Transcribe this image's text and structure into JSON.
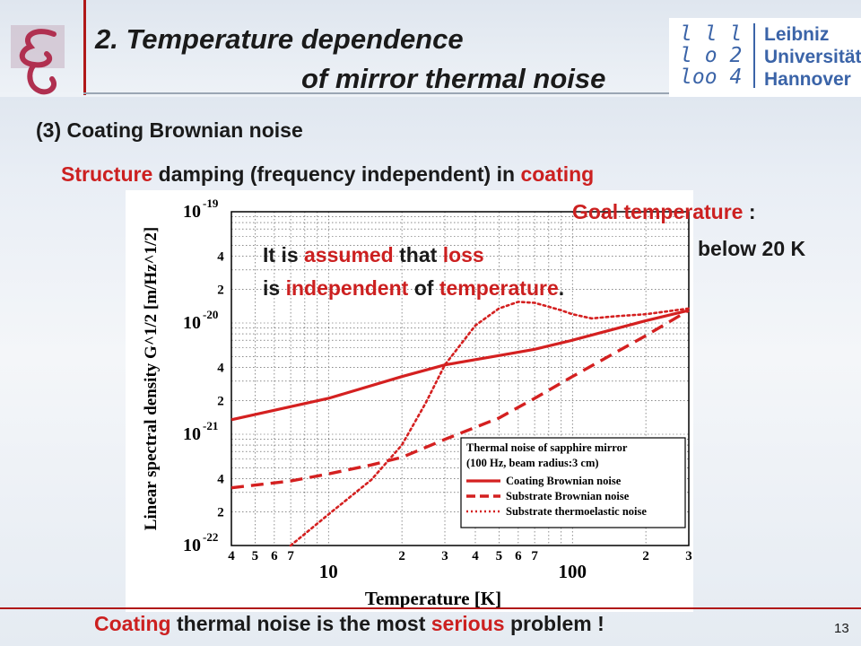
{
  "title": {
    "line1": "2. Temperature dependence",
    "line2": "of mirror thermal noise"
  },
  "logo": {
    "left_icon": "stylized-g-logo-icon",
    "luh_digits": [
      "l",
      "l",
      "l",
      "l",
      "o",
      "2",
      "l",
      "o",
      "o",
      "4"
    ],
    "luh_text": [
      "Leibniz",
      "Universität",
      "Hannover"
    ]
  },
  "subtitle": "(3) Coating Brownian noise",
  "structure_line": {
    "red1": "Structure",
    "black1": " damping (frequency independent) in ",
    "red2": "coating"
  },
  "goal": {
    "red": "Goal temperature",
    "black": " :",
    "below": "below 20 K"
  },
  "assumption": {
    "l1a": "It is ",
    "l1b": "assumed",
    "l1c": " that ",
    "l1d": "loss",
    "l2a": "is ",
    "l2b": "independent",
    "l2c": " of ",
    "l2d": "temperature",
    "l2e": "."
  },
  "bottom": {
    "red1": "Coating",
    "black1": " thermal noise is the most ",
    "red2": "serious",
    "black2": " problem !"
  },
  "page_number": "13",
  "colors": {
    "accent_red": "#cc2020",
    "series": "#d42020",
    "logo_blue": "#3b64a8"
  },
  "chart_data": {
    "type": "line",
    "xlabel": "Temperature [K]",
    "ylabel": "Linear spectral density G^1/2 [m/Hz^1/2]",
    "x_scale": "log",
    "y_scale": "log",
    "xlim": [
      4,
      300
    ],
    "ylim": [
      1e-22,
      1e-19
    ],
    "grid": true,
    "legend_position": "bottom-right",
    "x_tick_labels": [
      {
        "v": 4,
        "t": "4"
      },
      {
        "v": 5,
        "t": "5"
      },
      {
        "v": 6,
        "t": "6"
      },
      {
        "v": 7,
        "t": "7"
      },
      {
        "v": 10,
        "t": "10"
      },
      {
        "v": 20,
        "t": "2"
      },
      {
        "v": 30,
        "t": "3"
      },
      {
        "v": 40,
        "t": "4"
      },
      {
        "v": 50,
        "t": "5"
      },
      {
        "v": 60,
        "t": "6"
      },
      {
        "v": 70,
        "t": "7"
      },
      {
        "v": 100,
        "t": "100"
      },
      {
        "v": 200,
        "t": "2"
      },
      {
        "v": 300,
        "t": "3"
      }
    ],
    "y_tick_labels": [
      {
        "v": 1e-22,
        "t": "10",
        "e": "-22"
      },
      {
        "v": 2e-22,
        "t": "2"
      },
      {
        "v": 4e-22,
        "t": "4"
      },
      {
        "v": 1e-21,
        "t": "10",
        "e": "-21"
      },
      {
        "v": 2e-21,
        "t": "2"
      },
      {
        "v": 4e-21,
        "t": "4"
      },
      {
        "v": 1e-20,
        "t": "10",
        "e": "-20"
      },
      {
        "v": 2e-20,
        "t": "2"
      },
      {
        "v": 4e-20,
        "t": "4"
      },
      {
        "v": 1e-19,
        "t": "10",
        "e": "-19"
      }
    ],
    "legend_title": [
      "Thermal noise of sapphire mirror",
      "(100 Hz, beam radius:3 cm)"
    ],
    "series": [
      {
        "name": "Coating Brownian noise",
        "style": "solid",
        "x": [
          4,
          10,
          20,
          30,
          50,
          70,
          100,
          200,
          300
        ],
        "y": [
          1.35e-21,
          2.1e-21,
          3.3e-21,
          4.2e-21,
          5.1e-21,
          5.8e-21,
          7e-21,
          1.05e-20,
          1.3e-20
        ]
      },
      {
        "name": "Substrate Brownian noise",
        "style": "dashed",
        "x": [
          4,
          7,
          10,
          15,
          20,
          30,
          50,
          70,
          100,
          200,
          300
        ],
        "y": [
          3.3e-22,
          3.8e-22,
          4.4e-22,
          5.3e-22,
          6.2e-22,
          9e-22,
          1.4e-21,
          2.1e-21,
          3.3e-21,
          7.7e-21,
          1.3e-20
        ]
      },
      {
        "name": "Substrate thermoelastic noise",
        "style": "dotted",
        "x": [
          7,
          10,
          15,
          20,
          25,
          30,
          40,
          50,
          60,
          70,
          80,
          90,
          100,
          120,
          150,
          200,
          300
        ],
        "y": [
          1e-22,
          1.9e-22,
          3.9e-22,
          8e-22,
          1.9e-21,
          4.2e-21,
          9.5e-21,
          1.35e-20,
          1.55e-20,
          1.52e-20,
          1.4e-20,
          1.3e-20,
          1.2e-20,
          1.1e-20,
          1.15e-20,
          1.2e-20,
          1.35e-20
        ]
      }
    ]
  }
}
